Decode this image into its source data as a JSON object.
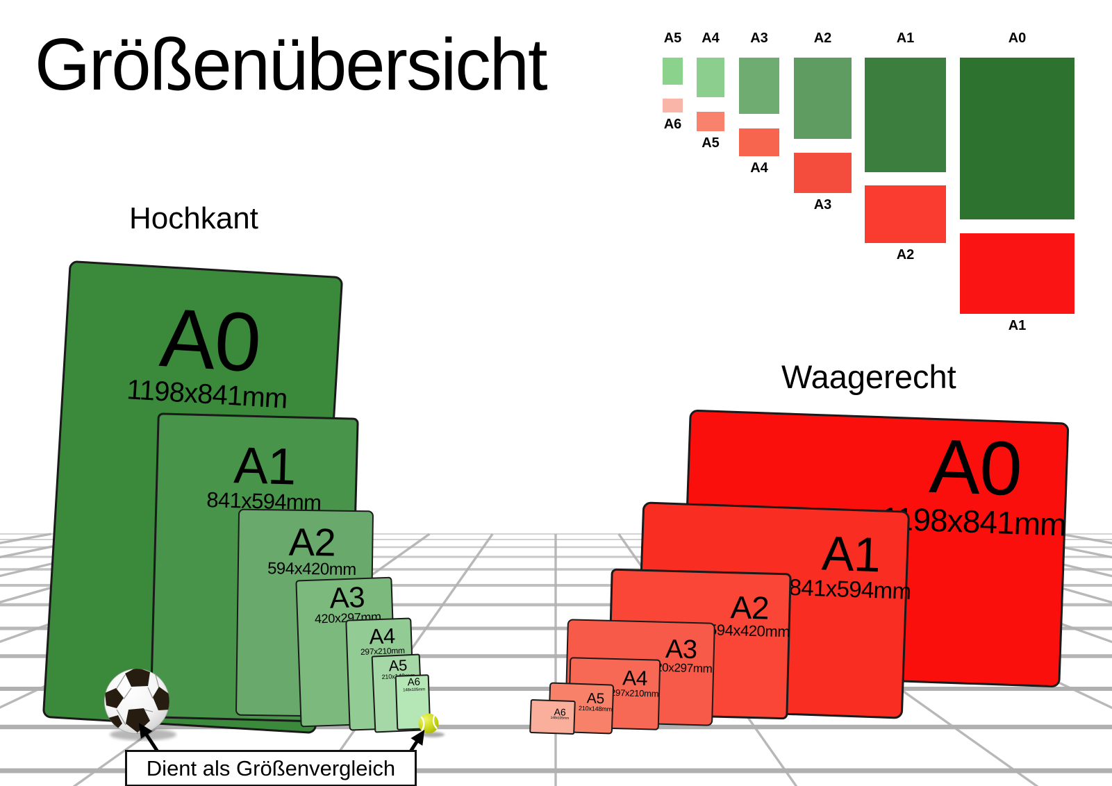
{
  "title": "Größenübersicht",
  "sections": {
    "portrait": {
      "heading": "Hochkant",
      "panels": [
        {
          "name": "A0",
          "dims": "1198x841mm"
        },
        {
          "name": "A1",
          "dims": "841x594mm"
        },
        {
          "name": "A2",
          "dims": "594x420mm"
        },
        {
          "name": "A3",
          "dims": "420x297mm"
        },
        {
          "name": "A4",
          "dims": "297x210mm"
        },
        {
          "name": "A5",
          "dims": "210x148mm"
        },
        {
          "name": "A6",
          "dims": "148x105mm"
        }
      ]
    },
    "landscape": {
      "heading": "Waagerecht",
      "panels": [
        {
          "name": "A0",
          "dims": "1198x841mm"
        },
        {
          "name": "A1",
          "dims": "841x594mm"
        },
        {
          "name": "A2",
          "dims": "594x420mm"
        },
        {
          "name": "A3",
          "dims": "420x297mm"
        },
        {
          "name": "A4",
          "dims": "297x210mm"
        },
        {
          "name": "A5",
          "dims": "210x148mm"
        },
        {
          "name": "A6",
          "dims": "148x105mm"
        }
      ]
    }
  },
  "mini_diagram": {
    "columns": [
      {
        "portrait_label": "A5",
        "landscape_label": "A6"
      },
      {
        "portrait_label": "A4",
        "landscape_label": "A5"
      },
      {
        "portrait_label": "A3",
        "landscape_label": "A4"
      },
      {
        "portrait_label": "A2",
        "landscape_label": "A3"
      },
      {
        "portrait_label": "A1",
        "landscape_label": "A2"
      },
      {
        "portrait_label": "A0",
        "landscape_label": "A1"
      }
    ]
  },
  "caption": {
    "text": "Dient als Größenvergleich"
  },
  "objects": {
    "soccer_ball": "soccer-ball",
    "tennis_ball": "tennis-ball"
  },
  "colors": {
    "background": "#ffffff",
    "panel_border": "#1a1a1a",
    "grid_line": "#b0b0b0",
    "portrait_fills": [
      "#3b8a3c",
      "#48944a",
      "#69aa6c",
      "#7bb97d",
      "#92cb94",
      "#a5d7a7",
      "#b4e6b6"
    ],
    "landscape_fills": [
      "#fb0f0c",
      "#fa2d23",
      "#f94637",
      "#f75a48",
      "#f76955",
      "#f88269",
      "#f9af9b"
    ],
    "mini_portrait_fills": [
      "#8bd28d",
      "#8bce8d",
      "#6fac72",
      "#5f9c62",
      "#3c7e3e",
      "#2e7230"
    ],
    "mini_landscape_fills": [
      "#f9b5a8",
      "#f8826c",
      "#f7654f",
      "#f54d3d",
      "#fa3c30",
      "#fa1414"
    ]
  }
}
